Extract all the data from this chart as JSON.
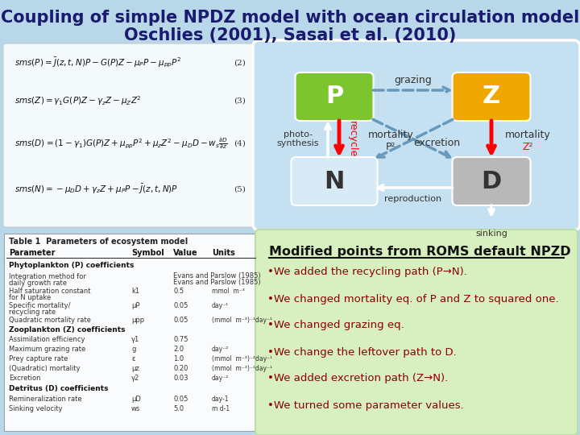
{
  "title_line1": "Coupling of simple NPDZ model with ocean circulation model",
  "title_line2": "Oschlies (2001), Sasai et al. (2010)",
  "bg_color": "#b8d8ea",
  "diagram_bg": "#c5e0f0",
  "P_color": "#7dc52e",
  "Z_color": "#f0a800",
  "N_color": "#d8eaf5",
  "D_color": "#b8b8b8",
  "modified_bg": "#d8f0c0",
  "modified_title": "Modified points from ROMS default NPZD",
  "modified_points": [
    "We added the recycling path (P→N).",
    "We changed mortality eq. of P and Z to squared one.",
    "We changed grazing eq.",
    "We change the leftover path to D.",
    "We added excretion path (Z→N).",
    "We turned some parameter values."
  ],
  "table_title": "Table 1  Parameters of ecosystem model",
  "table_headers": [
    "Parameter",
    "Symbol",
    "Value",
    "Units"
  ],
  "table_rows": [
    [
      "Phytoplankton (P) coefficients",
      "",
      "",
      ""
    ],
    [
      "Integration method for\ndaily growth rate",
      "",
      "Evans and Parslow (1985)",
      ""
    ],
    [
      "Half saturation constant\nfor N uptake",
      "k1",
      "0.5",
      "mmol  m⁻³"
    ],
    [
      "Specific mortality/\nrecycling rate",
      "μP",
      "0.05",
      "day⁻¹"
    ],
    [
      "Quadratic mortality rate",
      "μpp",
      "0.05",
      "(mmol  m⁻³)⁻¹day⁻¹"
    ],
    [
      "Zooplankton (Z) coefficients",
      "",
      "",
      ""
    ],
    [
      "Assimilation efficiency",
      "γ1",
      "0.75",
      ""
    ],
    [
      "Maximum grazing rate",
      "g",
      "2.0",
      "day⁻²"
    ],
    [
      "Prey capture rate",
      "ε",
      "1.0",
      "(mmol  m⁻³)⁻²day⁻¹"
    ],
    [
      "(Quadratic) mortality",
      "μz",
      "0.20",
      "(mmol  m⁻³)⁻¹day⁻¹"
    ],
    [
      "Excretion",
      "γ2",
      "0.03",
      "day⁻²"
    ],
    [
      "Detritus (D) coefficients",
      "",
      "",
      ""
    ],
    [
      "Remineralization rate",
      "μD",
      "0.05",
      "day-1"
    ],
    [
      "Sinking velocity",
      "ws",
      "5.0",
      "m d-1"
    ]
  ]
}
